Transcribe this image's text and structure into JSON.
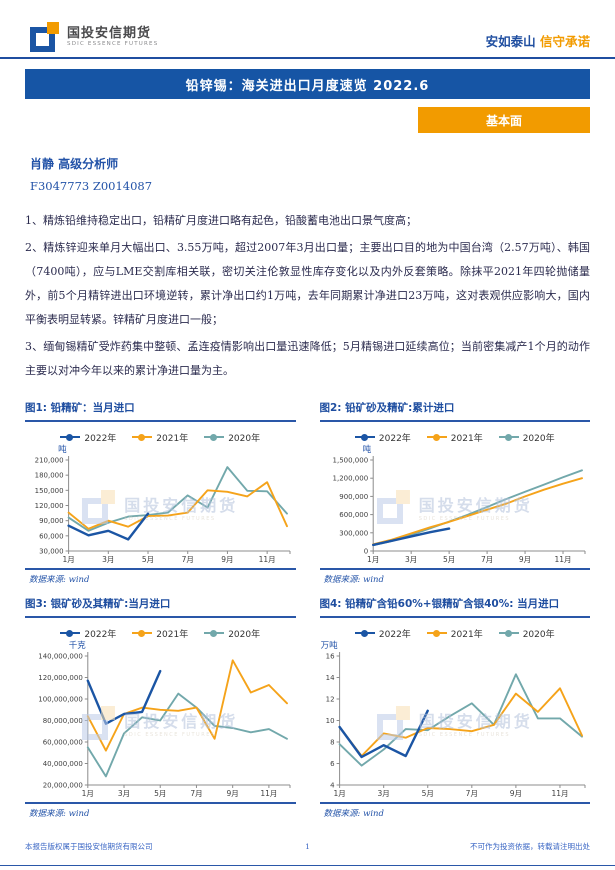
{
  "colors": {
    "brand_blue": "#1655a5",
    "brand_orange": "#f29b00",
    "series_2022": "#1b55a4",
    "series_2021": "#f5a31a",
    "series_2020": "#72a8ab"
  },
  "header": {
    "brand_cn": "国投安信期货",
    "brand_en": "SDIC ESSENCE FUTURES",
    "slogan_blue": "安如泰山",
    "slogan_orange": "信守承诺"
  },
  "title_bar": {
    "text": "铅锌锡：海关进出口月度速览 2022.6"
  },
  "badge": {
    "text": "基本面"
  },
  "analyst": {
    "name_line": "肖静 高级分析师",
    "codes": "F3047773 Z0014087"
  },
  "paragraphs": [
    "1、精炼铅维持稳定出口，铅精矿月度进口略有起色，铅酸蓄电池出口景气度高；",
    "2、精炼锌迎来单月大幅出口、3.55万吨，超过2007年3月出口量；主要出口目的地为中国台湾（2.57万吨）、韩国（7400吨），应与LME交割库相关联，密切关注伦敦显性库存变化以及内外反套策略。除抹平2021年四轮抛储量外，前5个月精锌进出口环境逆转，累计净出口约1万吨，去年同期累计净进口23万吨，这对表观供应影响大，国内平衡表明显转紧。锌精矿月度进口一般；",
    "3、缅甸锡精矿受炸药集中整顿、孟连疫情影响出口量迅速降低；5月精锡进口延续高位；当前密集减产1个月的动作主要以对冲今年以来的累计净进口量为主。"
  ],
  "source_label": "数据来源: wind",
  "watermark": {
    "cn": "国投安信期货",
    "en": "SDIC ESSENCE FUTURES"
  },
  "footer": {
    "left": "本报告版权属于国投安信期货有限公司",
    "page": "1",
    "right": "不可作为投资依据，转载请注明出处"
  },
  "chart_data": [
    {
      "type": "line",
      "title": "图1: 铅精矿：当月进口",
      "unit": "吨",
      "n_months": 12,
      "x_ticks": [
        {
          "month": 1,
          "label": "1月"
        },
        {
          "month": 3,
          "label": "3月"
        },
        {
          "month": 5,
          "label": "5月"
        },
        {
          "month": 7,
          "label": "7月"
        },
        {
          "month": 9,
          "label": "9月"
        },
        {
          "month": 11,
          "label": "11月"
        }
      ],
      "ylim": [
        30000,
        210000
      ],
      "yticks": [
        {
          "value": 30000,
          "label": "30,000"
        },
        {
          "value": 60000,
          "label": "60,000"
        },
        {
          "value": 90000,
          "label": "90,000"
        },
        {
          "value": 120000,
          "label": "120,000"
        },
        {
          "value": 150000,
          "label": "150,000"
        },
        {
          "value": 180000,
          "label": "180,000"
        },
        {
          "value": 210000,
          "label": "210,000"
        }
      ],
      "series": [
        {
          "name": "2022年",
          "color": "#1b55a4",
          "values": [
            80000,
            61000,
            70000,
            53000,
            104000
          ]
        },
        {
          "name": "2021年",
          "color": "#f5a31a",
          "values": [
            106000,
            74000,
            90000,
            78000,
            99000,
            100000,
            106000,
            150000,
            147000,
            138000,
            166000,
            79000
          ]
        },
        {
          "name": "2020年",
          "color": "#72a8ab",
          "values": [
            96000,
            70000,
            86000,
            98000,
            101000,
            106000,
            140000,
            116000,
            196000,
            149000,
            148000,
            104000
          ]
        }
      ]
    },
    {
      "type": "line",
      "title": "图2: 铅矿砂及精矿:累计进口",
      "unit": "吨",
      "n_months": 12,
      "x_ticks": [
        {
          "month": 1,
          "label": "1月"
        },
        {
          "month": 3,
          "label": "3月"
        },
        {
          "month": 5,
          "label": "5月"
        },
        {
          "month": 7,
          "label": "7月"
        },
        {
          "month": 9,
          "label": "9月"
        },
        {
          "month": 11,
          "label": "11月"
        }
      ],
      "ylim": [
        0,
        1500000
      ],
      "yticks": [
        {
          "value": 0,
          "label": "0"
        },
        {
          "value": 300000,
          "label": "300,000"
        },
        {
          "value": 600000,
          "label": "600,000"
        },
        {
          "value": 900000,
          "label": "900,000"
        },
        {
          "value": 1200000,
          "label": "1,200,000"
        },
        {
          "value": 1500000,
          "label": "1,500,000"
        }
      ],
      "series": [
        {
          "name": "2022年",
          "color": "#1b55a4",
          "values": [
            100000,
            170000,
            240000,
            310000,
            370000
          ]
        },
        {
          "name": "2021年",
          "color": "#f5a31a",
          "values": [
            110000,
            190000,
            290000,
            390000,
            480000,
            580000,
            680000,
            780000,
            900000,
            1010000,
            1110000,
            1200000
          ]
        },
        {
          "name": "2020年",
          "color": "#72a8ab",
          "values": [
            95000,
            165000,
            265000,
            375000,
            485000,
            600000,
            725000,
            855000,
            975000,
            1095000,
            1215000,
            1330000
          ]
        }
      ]
    },
    {
      "type": "line",
      "title": "图3: 银矿砂及其精矿:当月进口",
      "unit": "千克",
      "n_months": 12,
      "x_ticks": [
        {
          "month": 1,
          "label": "1月"
        },
        {
          "month": 3,
          "label": "3月"
        },
        {
          "month": 5,
          "label": "5月"
        },
        {
          "month": 7,
          "label": "7月"
        },
        {
          "month": 9,
          "label": "9月"
        },
        {
          "month": 11,
          "label": "11月"
        }
      ],
      "ylim": [
        20000000,
        140000000
      ],
      "yticks": [
        {
          "value": 20000000,
          "label": "20,000,000"
        },
        {
          "value": 40000000,
          "label": "40,000,000"
        },
        {
          "value": 60000000,
          "label": "60,000,000"
        },
        {
          "value": 80000000,
          "label": "80,000,000"
        },
        {
          "value": 100000000,
          "label": "100,000,000"
        },
        {
          "value": 120000000,
          "label": "120,000,000"
        },
        {
          "value": 140000000,
          "label": "140,000,000"
        }
      ],
      "series": [
        {
          "name": "2022年",
          "color": "#1b55a4",
          "values": [
            117000000,
            77000000,
            86000000,
            88000000,
            126000000
          ]
        },
        {
          "name": "2021年",
          "color": "#f5a31a",
          "values": [
            84000000,
            52000000,
            86000000,
            92000000,
            90000000,
            89000000,
            92000000,
            63000000,
            136000000,
            106000000,
            113000000,
            96000000
          ]
        },
        {
          "name": "2020年",
          "color": "#72a8ab",
          "values": [
            55000000,
            28000000,
            68000000,
            83000000,
            80000000,
            105000000,
            92000000,
            75000000,
            73000000,
            69000000,
            72000000,
            63000000
          ]
        }
      ]
    },
    {
      "type": "line",
      "title": "图4: 铅精矿含铅60%+银精矿含银40%: 当月进口",
      "unit": "万吨",
      "n_months": 12,
      "x_ticks": [
        {
          "month": 1,
          "label": "1月"
        },
        {
          "month": 3,
          "label": "3月"
        },
        {
          "month": 5,
          "label": "5月"
        },
        {
          "month": 7,
          "label": "7月"
        },
        {
          "month": 9,
          "label": "9月"
        },
        {
          "month": 11,
          "label": "11月"
        }
      ],
      "ylim": [
        4,
        16
      ],
      "yticks": [
        {
          "value": 4,
          "label": "4"
        },
        {
          "value": 6,
          "label": "6"
        },
        {
          "value": 8,
          "label": "8"
        },
        {
          "value": 10,
          "label": "10"
        },
        {
          "value": 12,
          "label": "12"
        },
        {
          "value": 14,
          "label": "14"
        },
        {
          "value": 16,
          "label": "16"
        }
      ],
      "series": [
        {
          "name": "2022年",
          "color": "#1b55a4",
          "values": [
            9.4,
            6.6,
            7.7,
            6.7,
            10.9
          ]
        },
        {
          "name": "2021年",
          "color": "#f5a31a",
          "values": [
            9.4,
            6.7,
            8.8,
            8.4,
            9.3,
            9.2,
            9.0,
            9.6,
            12.5,
            10.8,
            13.0,
            8.6
          ]
        },
        {
          "name": "2020年",
          "color": "#72a8ab",
          "values": [
            7.8,
            5.8,
            7.3,
            9.2,
            9.1,
            10.4,
            11.6,
            9.6,
            14.3,
            10.2,
            10.2,
            8.5
          ]
        }
      ]
    }
  ]
}
